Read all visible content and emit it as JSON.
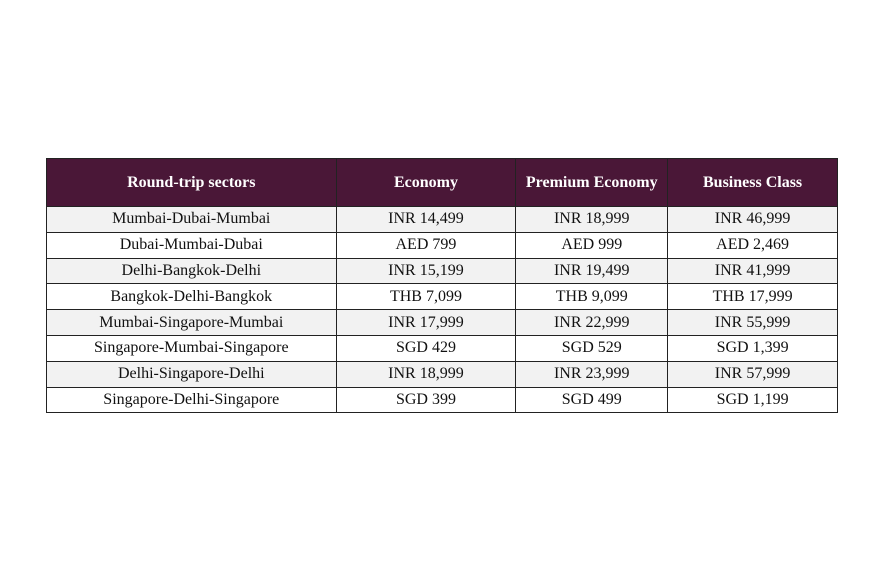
{
  "table": {
    "headers": [
      "Round-trip sectors",
      "Economy",
      "Premium Economy",
      "Business Class"
    ],
    "rows": [
      [
        "Mumbai-Dubai-Mumbai",
        "INR 14,499",
        "INR 18,999",
        "INR 46,999"
      ],
      [
        "Dubai-Mumbai-Dubai",
        "AED 799",
        "AED 999",
        "AED 2,469"
      ],
      [
        "Delhi-Bangkok-Delhi",
        "INR 15,199",
        "INR 19,499",
        "INR 41,999"
      ],
      [
        "Bangkok-Delhi-Bangkok",
        "THB 7,099",
        "THB 9,099",
        "THB 17,999"
      ],
      [
        "Mumbai-Singapore-Mumbai",
        "INR 17,999",
        "INR 22,999",
        "INR 55,999"
      ],
      [
        "Singapore-Mumbai-Singapore",
        "SGD 429",
        "SGD 529",
        "SGD 1,399"
      ],
      [
        "Delhi-Singapore-Delhi",
        "INR 18,999",
        "INR 23,999",
        "INR 57,999"
      ],
      [
        "Singapore-Delhi-Singapore",
        "SGD 399",
        "SGD 499",
        "SGD 1,199"
      ]
    ]
  }
}
